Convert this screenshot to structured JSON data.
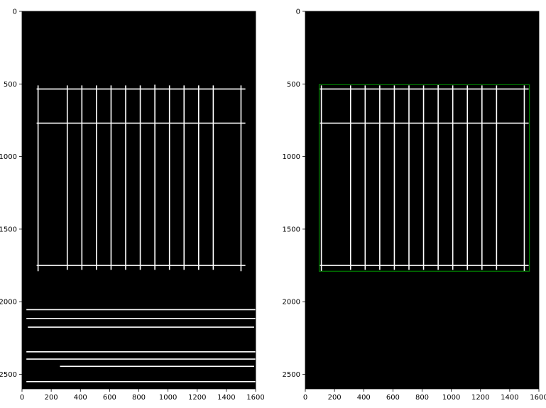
{
  "chart_data": [
    {
      "type": "image",
      "panel": "left",
      "xlim": [
        0,
        1600
      ],
      "ylim": [
        2600,
        0
      ],
      "xticks": [
        0,
        200,
        400,
        600,
        800,
        1000,
        1200,
        1400,
        1600
      ],
      "yticks": [
        0,
        500,
        1000,
        1500,
        2000,
        2500
      ],
      "xtick_labels": [
        "0",
        "200",
        "400",
        "600",
        "800",
        "1000",
        "1200",
        "1400",
        "1600"
      ],
      "ytick_labels": [
        "0",
        "500",
        "1000",
        "1500",
        "2000",
        "2500"
      ],
      "background_color": "#000000",
      "line_color": "#ffffff",
      "vertical_lines": [
        {
          "x": 110,
          "y1": 510,
          "y2": 1790
        },
        {
          "x": 310,
          "y1": 510,
          "y2": 1780
        },
        {
          "x": 410,
          "y1": 510,
          "y2": 1780
        },
        {
          "x": 510,
          "y1": 510,
          "y2": 1780
        },
        {
          "x": 610,
          "y1": 510,
          "y2": 1780
        },
        {
          "x": 710,
          "y1": 510,
          "y2": 1780
        },
        {
          "x": 810,
          "y1": 510,
          "y2": 1780
        },
        {
          "x": 910,
          "y1": 505,
          "y2": 1780
        },
        {
          "x": 1010,
          "y1": 510,
          "y2": 1780
        },
        {
          "x": 1110,
          "y1": 510,
          "y2": 1780
        },
        {
          "x": 1210,
          "y1": 510,
          "y2": 1780
        },
        {
          "x": 1310,
          "y1": 510,
          "y2": 1780
        },
        {
          "x": 1500,
          "y1": 510,
          "y2": 1790
        }
      ],
      "horizontal_lines": [
        {
          "y": 535,
          "x1": 100,
          "x2": 1530
        },
        {
          "y": 770,
          "x1": 100,
          "x2": 1530
        },
        {
          "y": 1750,
          "x1": 100,
          "x2": 1530
        },
        {
          "y": 2055,
          "x1": 30,
          "x2": 1600
        },
        {
          "y": 2115,
          "x1": 30,
          "x2": 1600
        },
        {
          "y": 2175,
          "x1": 40,
          "x2": 1590
        },
        {
          "y": 2345,
          "x1": 30,
          "x2": 1600
        },
        {
          "y": 2395,
          "x1": 30,
          "x2": 1600
        },
        {
          "y": 2445,
          "x1": 260,
          "x2": 1590
        },
        {
          "y": 2550,
          "x1": 30,
          "x2": 1600
        }
      ]
    },
    {
      "type": "image",
      "panel": "right",
      "xlim": [
        0,
        1600
      ],
      "ylim": [
        2600,
        0
      ],
      "xticks": [
        0,
        200,
        400,
        600,
        800,
        1000,
        1200,
        1400,
        1600
      ],
      "yticks": [
        0,
        500,
        1000,
        1500,
        2000,
        2500
      ],
      "xtick_labels": [
        "0",
        "200",
        "400",
        "600",
        "800",
        "1000",
        "1200",
        "1400",
        "1600"
      ],
      "ytick_labels": [
        "0",
        "500",
        "1000",
        "1500",
        "2000",
        "2500"
      ],
      "background_color": "#000000",
      "line_color": "#ffffff",
      "vertical_lines": [
        {
          "x": 110,
          "y1": 510,
          "y2": 1790
        },
        {
          "x": 310,
          "y1": 510,
          "y2": 1780
        },
        {
          "x": 410,
          "y1": 510,
          "y2": 1780
        },
        {
          "x": 510,
          "y1": 510,
          "y2": 1780
        },
        {
          "x": 610,
          "y1": 510,
          "y2": 1780
        },
        {
          "x": 710,
          "y1": 510,
          "y2": 1780
        },
        {
          "x": 810,
          "y1": 510,
          "y2": 1780
        },
        {
          "x": 910,
          "y1": 505,
          "y2": 1780
        },
        {
          "x": 1010,
          "y1": 510,
          "y2": 1780
        },
        {
          "x": 1110,
          "y1": 510,
          "y2": 1780
        },
        {
          "x": 1210,
          "y1": 510,
          "y2": 1780
        },
        {
          "x": 1310,
          "y1": 510,
          "y2": 1780
        },
        {
          "x": 1500,
          "y1": 510,
          "y2": 1790
        }
      ],
      "horizontal_lines": [
        {
          "y": 535,
          "x1": 100,
          "x2": 1530
        },
        {
          "y": 770,
          "x1": 100,
          "x2": 1530
        },
        {
          "y": 1750,
          "x1": 100,
          "x2": 1530
        }
      ],
      "bounding_box": {
        "x1": 95,
        "y1": 505,
        "x2": 1535,
        "y2": 1790,
        "color": "#008000"
      }
    }
  ]
}
